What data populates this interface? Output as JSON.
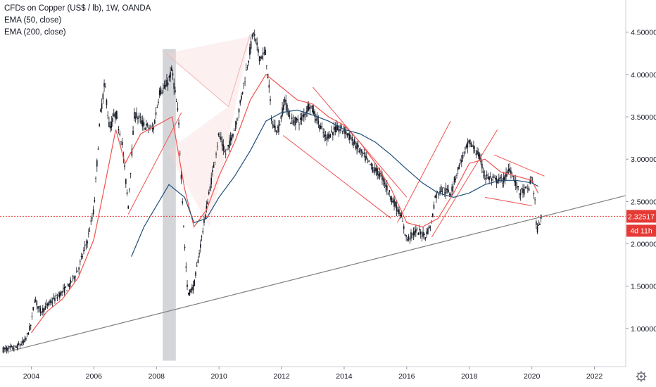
{
  "legend": {
    "symbol": "CFDs on Copper (US$ / lb), 1W, OANDA",
    "ema50": "EMA (50, close)",
    "ema200": "EMA (200, close)"
  },
  "colors": {
    "candle": "#131722",
    "ema50": "#ef5350",
    "ema200": "#1f4e79",
    "trendline": "#808080",
    "priceline": "#e53935",
    "pattern": "#ef5350",
    "highlight": "#c9cacf",
    "badge": "#e53935"
  },
  "price_badge": {
    "value": "2.32517",
    "countdown": "4d 11h"
  },
  "settings_icon": "gear-icon",
  "chart_data": {
    "type": "line",
    "title": "CFDs on Copper (US$ / lb), 1W, OANDA",
    "xlabel": "",
    "ylabel": "",
    "xlim": [
      2003.0,
      2023.0
    ],
    "ylim": [
      0.55,
      4.88
    ],
    "grid": false,
    "x_ticks": [
      "2004",
      "2006",
      "2008",
      "2010",
      "2012",
      "2014",
      "2016",
      "2018",
      "2020",
      "2022"
    ],
    "y_ticks": [
      "1.00000",
      "1.50000",
      "2.00000",
      "2.50000",
      "3.00000",
      "3.50000",
      "4.00000",
      "4.50000"
    ],
    "last_price": 2.32517,
    "series": [
      {
        "name": "CFDs on Copper (US$ / lb)",
        "x": [
          2003.1,
          2003.5,
          2003.8,
          2004.0,
          2004.1,
          2004.3,
          2004.6,
          2004.9,
          2005.2,
          2005.5,
          2005.8,
          2006.0,
          2006.2,
          2006.35,
          2006.5,
          2006.7,
          2006.9,
          2007.1,
          2007.3,
          2007.6,
          2007.9,
          2008.1,
          2008.3,
          2008.5,
          2008.7,
          2008.9,
          2009.0,
          2009.2,
          2009.5,
          2009.8,
          2010.0,
          2010.2,
          2010.4,
          2010.6,
          2010.9,
          2011.1,
          2011.3,
          2011.5,
          2011.7,
          2011.9,
          2012.1,
          2012.3,
          2012.6,
          2012.9,
          2013.1,
          2013.4,
          2013.7,
          2014.0,
          2014.3,
          2014.6,
          2014.9,
          2015.2,
          2015.5,
          2015.8,
          2016.0,
          2016.3,
          2016.6,
          2016.8,
          2016.9,
          2017.1,
          2017.4,
          2017.7,
          2018.0,
          2018.3,
          2018.5,
          2018.8,
          2019.1,
          2019.3,
          2019.6,
          2019.9,
          2020.0,
          2020.1,
          2020.15,
          2020.22,
          2020.3
        ],
        "values": [
          0.75,
          0.77,
          0.85,
          1.05,
          1.35,
          1.2,
          1.3,
          1.4,
          1.5,
          1.7,
          2.05,
          2.4,
          3.5,
          3.9,
          3.35,
          3.55,
          3.2,
          2.45,
          3.55,
          3.4,
          3.35,
          3.8,
          3.85,
          4.05,
          3.5,
          2.0,
          1.4,
          1.5,
          2.2,
          2.85,
          3.3,
          3.05,
          3.25,
          3.5,
          4.1,
          4.5,
          4.2,
          4.25,
          3.4,
          3.35,
          3.7,
          3.45,
          3.45,
          3.65,
          3.5,
          3.25,
          3.35,
          3.35,
          3.2,
          3.05,
          2.9,
          2.8,
          2.55,
          2.35,
          2.05,
          2.15,
          2.1,
          2.25,
          2.55,
          2.65,
          2.6,
          2.95,
          3.2,
          3.05,
          2.8,
          2.75,
          2.75,
          2.9,
          2.6,
          2.65,
          2.8,
          2.5,
          2.15,
          2.2,
          2.33
        ]
      },
      {
        "name": "EMA (50, close)",
        "x": [
          2004.0,
          2004.5,
          2005.0,
          2005.5,
          2006.0,
          2006.3,
          2006.7,
          2007.0,
          2007.5,
          2008.0,
          2008.5,
          2008.9,
          2009.2,
          2009.6,
          2010.0,
          2010.5,
          2011.0,
          2011.5,
          2012.0,
          2012.5,
          2013.0,
          2013.5,
          2014.0,
          2014.5,
          2015.0,
          2015.5,
          2016.0,
          2016.5,
          2017.0,
          2017.5,
          2018.0,
          2018.5,
          2019.0,
          2019.5,
          2020.0,
          2020.2
        ],
        "values": [
          0.95,
          1.2,
          1.35,
          1.6,
          2.05,
          2.6,
          3.35,
          2.95,
          3.3,
          3.4,
          3.5,
          2.65,
          2.2,
          2.4,
          2.8,
          3.2,
          3.7,
          4.0,
          3.85,
          3.7,
          3.65,
          3.5,
          3.4,
          3.2,
          2.95,
          2.65,
          2.25,
          2.2,
          2.3,
          2.6,
          2.95,
          3.0,
          2.85,
          2.8,
          2.75,
          2.6
        ]
      },
      {
        "name": "EMA (200, close)",
        "x": [
          2007.2,
          2007.6,
          2008.0,
          2008.4,
          2008.9,
          2009.2,
          2009.6,
          2010.0,
          2010.5,
          2011.0,
          2011.5,
          2012.0,
          2012.5,
          2013.0,
          2013.5,
          2014.0,
          2014.5,
          2015.0,
          2015.5,
          2016.0,
          2016.5,
          2017.0,
          2017.5,
          2018.0,
          2018.5,
          2019.0,
          2019.5,
          2020.0,
          2020.2
        ],
        "values": [
          1.85,
          2.2,
          2.45,
          2.7,
          2.55,
          2.25,
          2.3,
          2.55,
          2.8,
          3.1,
          3.45,
          3.55,
          3.58,
          3.52,
          3.45,
          3.35,
          3.3,
          3.2,
          3.05,
          2.88,
          2.72,
          2.6,
          2.55,
          2.6,
          2.7,
          2.75,
          2.75,
          2.72,
          2.68
        ]
      }
    ]
  }
}
